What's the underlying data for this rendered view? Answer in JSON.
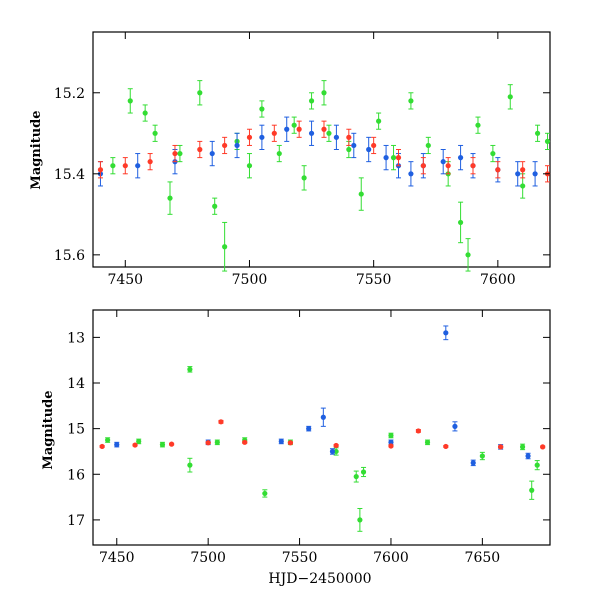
{
  "colors": {
    "green": "#33dd33",
    "blue": "#1f5fe0",
    "red": "#ff3a28",
    "axis": "#000000"
  },
  "chart_data": [
    {
      "type": "scatter",
      "title": "",
      "xlabel": "",
      "ylabel": "Magnitude",
      "xlim": [
        7437,
        7621
      ],
      "ylim": [
        15.63,
        15.05
      ],
      "y_inverted": true,
      "grid": false,
      "xticks": [
        7450,
        7500,
        7550,
        7600
      ],
      "yticks": [
        15.2,
        15.4,
        15.6
      ],
      "error_bars": true,
      "series": [
        {
          "color": "green",
          "x": [
            7445,
            7452,
            7458,
            7462,
            7468,
            7472,
            7480,
            7486,
            7490,
            7495,
            7500,
            7505,
            7512,
            7518,
            7522,
            7525,
            7530,
            7532,
            7540,
            7545,
            7552,
            7558,
            7565,
            7572,
            7580,
            7585,
            7588,
            7592,
            7598,
            7605,
            7610,
            7616,
            7620
          ],
          "y": [
            15.38,
            15.22,
            15.25,
            15.3,
            15.46,
            15.35,
            15.2,
            15.48,
            15.58,
            15.32,
            15.38,
            15.24,
            15.35,
            15.28,
            15.41,
            15.22,
            15.2,
            15.3,
            15.34,
            15.45,
            15.27,
            15.36,
            15.22,
            15.33,
            15.4,
            15.52,
            15.6,
            15.28,
            15.35,
            15.21,
            15.43,
            15.3,
            15.32
          ],
          "err": [
            0.02,
            0.03,
            0.02,
            0.02,
            0.04,
            0.02,
            0.03,
            0.02,
            0.06,
            0.02,
            0.03,
            0.02,
            0.02,
            0.02,
            0.03,
            0.02,
            0.03,
            0.02,
            0.02,
            0.04,
            0.02,
            0.03,
            0.02,
            0.02,
            0.03,
            0.05,
            0.04,
            0.02,
            0.02,
            0.03,
            0.03,
            0.02,
            0.02
          ]
        },
        {
          "color": "blue",
          "x": [
            7440,
            7455,
            7470,
            7485,
            7495,
            7505,
            7515,
            7525,
            7535,
            7542,
            7548,
            7555,
            7560,
            7565,
            7570,
            7578,
            7585,
            7590,
            7600,
            7608,
            7615
          ],
          "y": [
            15.4,
            15.38,
            15.37,
            15.35,
            15.33,
            15.31,
            15.29,
            15.3,
            15.31,
            15.33,
            15.34,
            15.36,
            15.38,
            15.4,
            15.38,
            15.37,
            15.36,
            15.38,
            15.39,
            15.4,
            15.4
          ],
          "err": [
            0.03,
            0.03,
            0.03,
            0.03,
            0.03,
            0.03,
            0.03,
            0.03,
            0.03,
            0.03,
            0.03,
            0.03,
            0.03,
            0.03,
            0.03,
            0.03,
            0.03,
            0.03,
            0.03,
            0.03,
            0.03
          ]
        },
        {
          "color": "red",
          "x": [
            7440,
            7450,
            7460,
            7470,
            7480,
            7490,
            7500,
            7510,
            7520,
            7530,
            7540,
            7550,
            7560,
            7570,
            7580,
            7590,
            7600,
            7610,
            7620
          ],
          "y": [
            15.39,
            15.38,
            15.37,
            15.35,
            15.34,
            15.33,
            15.31,
            15.3,
            15.29,
            15.29,
            15.31,
            15.33,
            15.36,
            15.38,
            15.38,
            15.38,
            15.39,
            15.39,
            15.4
          ],
          "err": [
            0.02,
            0.02,
            0.02,
            0.02,
            0.02,
            0.02,
            0.02,
            0.02,
            0.02,
            0.02,
            0.02,
            0.02,
            0.02,
            0.02,
            0.02,
            0.02,
            0.02,
            0.02,
            0.02
          ]
        }
      ]
    },
    {
      "type": "scatter",
      "title": "",
      "xlabel": "HJD−2450000",
      "ylabel": "Magnitude",
      "xlim": [
        7437,
        7687
      ],
      "ylim": [
        17.55,
        12.4
      ],
      "y_inverted": true,
      "grid": false,
      "xticks": [
        7450,
        7500,
        7550,
        7600,
        7650
      ],
      "yticks": [
        13,
        14,
        15,
        16,
        17
      ],
      "error_bars": true,
      "series": [
        {
          "color": "green",
          "x": [
            7445,
            7462,
            7475,
            7490,
            7490,
            7505,
            7520,
            7531,
            7545,
            7570,
            7581,
            7583,
            7585,
            7600,
            7620,
            7650,
            7672,
            7677,
            7680
          ],
          "y": [
            15.25,
            15.28,
            15.35,
            13.7,
            15.8,
            15.3,
            15.25,
            16.42,
            15.3,
            15.5,
            16.05,
            17.0,
            15.95,
            15.15,
            15.3,
            15.6,
            15.4,
            16.35,
            15.8
          ],
          "err": [
            0.05,
            0.05,
            0.05,
            0.06,
            0.15,
            0.05,
            0.05,
            0.08,
            0.05,
            0.08,
            0.12,
            0.25,
            0.1,
            0.05,
            0.05,
            0.08,
            0.06,
            0.2,
            0.1
          ]
        },
        {
          "color": "blue",
          "x": [
            7450,
            7500,
            7540,
            7555,
            7563,
            7568,
            7600,
            7630,
            7635,
            7645,
            7660,
            7675
          ],
          "y": [
            15.35,
            15.3,
            15.28,
            15.0,
            14.75,
            15.5,
            15.3,
            12.9,
            14.95,
            15.75,
            15.4,
            15.6
          ],
          "err": [
            0.05,
            0.05,
            0.05,
            0.05,
            0.2,
            0.06,
            0.05,
            0.15,
            0.1,
            0.06,
            0.05,
            0.06
          ]
        },
        {
          "color": "red",
          "x": [
            7442,
            7460,
            7480,
            7500,
            7507,
            7520,
            7545,
            7570,
            7600,
            7615,
            7630,
            7660,
            7683
          ],
          "y": [
            15.39,
            15.36,
            15.34,
            15.31,
            14.85,
            15.3,
            15.31,
            15.37,
            15.38,
            15.05,
            15.39,
            15.4,
            15.4
          ],
          "err": [
            0.02,
            0.02,
            0.02,
            0.02,
            0.03,
            0.02,
            0.02,
            0.02,
            0.02,
            0.03,
            0.02,
            0.02,
            0.02
          ]
        }
      ]
    }
  ]
}
